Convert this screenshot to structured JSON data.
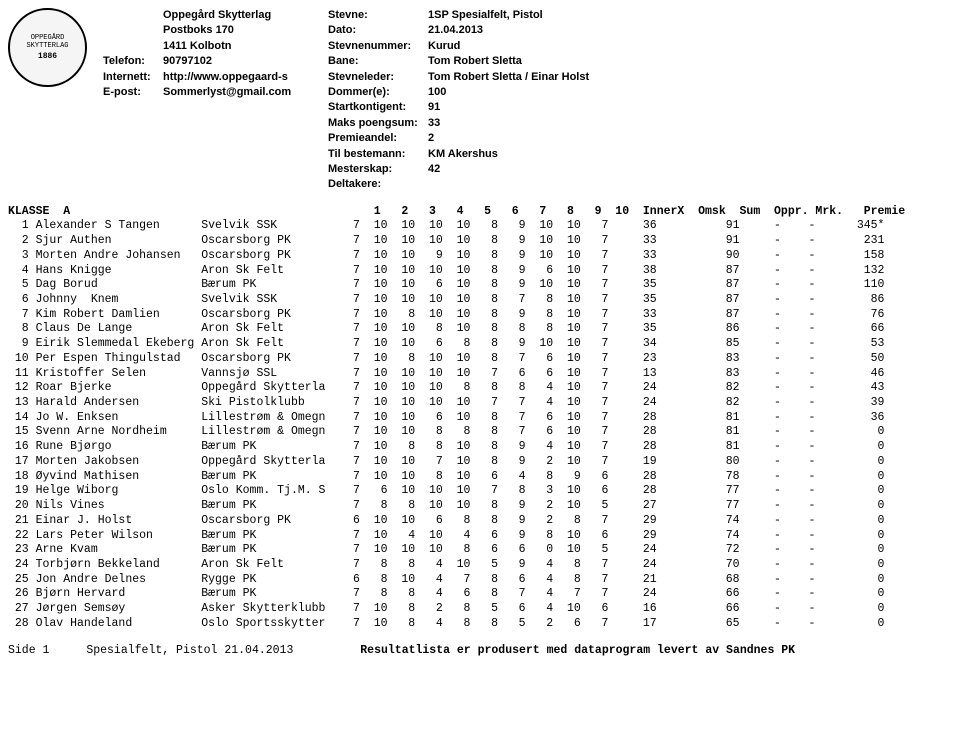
{
  "logo": {
    "top_text": "OPPEGÅRD SKYTTERLAG",
    "year": "1886"
  },
  "org": {
    "name": "Oppegård Skytterlag",
    "address": "Postboks 170",
    "city": "1411  Kolbotn",
    "phone_label": "Telefon:",
    "phone": "90797102",
    "web_label": "Internett:",
    "web": "http://www.oppegaard-s",
    "email_label": "E-post:",
    "email": "Sommerlyst@gmail.com"
  },
  "meta_labels": {
    "stevne": "Stevne:",
    "dato": "Dato:",
    "stevnenummer": "Stevnenummer:",
    "bane": "Bane:",
    "stevneleder": "Stevneleder:",
    "dommer": "Dommer(e):",
    "startkontigent": "Startkontigent:",
    "maks": "Maks poengsum:",
    "premieandel": "Premieandel:",
    "tilbestemann": "Til bestemann:",
    "mesterskap": "Mesterskap:",
    "deltakere": "Deltakere:"
  },
  "meta_values": {
    "stevne": "1SP Spesialfelt, Pistol",
    "dato": "21.04.2013",
    "stevnenummer": "",
    "bane": "Kurud",
    "stevneleder": "Tom Robert Sletta",
    "dommer": "Tom Robert Sletta / Einar Holst",
    "startkontigent": "100",
    "maks": "91",
    "premieandel": "33",
    "tilbestemann": "2",
    "mesterskap": "KM   Akershus",
    "deltakere": "42"
  },
  "table": {
    "klasse": "KLASSE  A",
    "columns": [
      "1",
      "2",
      "3",
      "4",
      "5",
      "6",
      "7",
      "8",
      "9",
      "10",
      "InnerX",
      "Omsk",
      "Sum",
      "Oppr.",
      "Mrk.",
      "Premie"
    ],
    "rows": [
      {
        "n": "1",
        "name": "Alexander S Tangen",
        "club": "Svelvik SSK",
        "s": [
          "7",
          "10",
          "10",
          "10",
          "10",
          "8",
          "9",
          "10",
          "10",
          "7"
        ],
        "ix": "36",
        "sum": "91",
        "oppr": "-",
        "mrk": "-",
        "prem": "345*"
      },
      {
        "n": "2",
        "name": "Sjur Authen",
        "club": "Oscarsborg PK",
        "s": [
          "7",
          "10",
          "10",
          "10",
          "10",
          "8",
          "9",
          "10",
          "10",
          "7"
        ],
        "ix": "33",
        "sum": "91",
        "oppr": "-",
        "mrk": "-",
        "prem": "231"
      },
      {
        "n": "3",
        "name": "Morten Andre Johansen",
        "club": "Oscarsborg PK",
        "s": [
          "7",
          "10",
          "10",
          "9",
          "10",
          "8",
          "9",
          "10",
          "10",
          "7"
        ],
        "ix": "33",
        "sum": "90",
        "oppr": "-",
        "mrk": "-",
        "prem": "158"
      },
      {
        "n": "4",
        "name": "Hans Knigge",
        "club": "Aron Sk Felt",
        "s": [
          "7",
          "10",
          "10",
          "10",
          "10",
          "8",
          "9",
          "6",
          "10",
          "7"
        ],
        "ix": "38",
        "sum": "87",
        "oppr": "-",
        "mrk": "-",
        "prem": "132"
      },
      {
        "n": "5",
        "name": "Dag Borud",
        "club": "Bærum PK",
        "s": [
          "7",
          "10",
          "10",
          "6",
          "10",
          "8",
          "9",
          "10",
          "10",
          "7"
        ],
        "ix": "35",
        "sum": "87",
        "oppr": "-",
        "mrk": "-",
        "prem": "110"
      },
      {
        "n": "6",
        "name": "Johnny  Knem",
        "club": "Svelvik SSK",
        "s": [
          "7",
          "10",
          "10",
          "10",
          "10",
          "8",
          "7",
          "8",
          "10",
          "7"
        ],
        "ix": "35",
        "sum": "87",
        "oppr": "-",
        "mrk": "-",
        "prem": "86"
      },
      {
        "n": "7",
        "name": "Kim Robert Damlien",
        "club": "Oscarsborg PK",
        "s": [
          "7",
          "10",
          "8",
          "10",
          "10",
          "8",
          "9",
          "8",
          "10",
          "7"
        ],
        "ix": "33",
        "sum": "87",
        "oppr": "-",
        "mrk": "-",
        "prem": "76"
      },
      {
        "n": "8",
        "name": "Claus De Lange",
        "club": "Aron Sk Felt",
        "s": [
          "7",
          "10",
          "10",
          "8",
          "10",
          "8",
          "8",
          "8",
          "10",
          "7"
        ],
        "ix": "35",
        "sum": "86",
        "oppr": "-",
        "mrk": "-",
        "prem": "66"
      },
      {
        "n": "9",
        "name": "Eirik Slemmedal Ekeberg",
        "club": "Aron Sk Felt",
        "s": [
          "7",
          "10",
          "10",
          "6",
          "8",
          "8",
          "9",
          "10",
          "10",
          "7"
        ],
        "ix": "34",
        "sum": "85",
        "oppr": "-",
        "mrk": "-",
        "prem": "53"
      },
      {
        "n": "10",
        "name": "Per Espen Thingulstad",
        "club": "Oscarsborg PK",
        "s": [
          "7",
          "10",
          "8",
          "10",
          "10",
          "8",
          "7",
          "6",
          "10",
          "7"
        ],
        "ix": "23",
        "sum": "83",
        "oppr": "-",
        "mrk": "-",
        "prem": "50"
      },
      {
        "n": "11",
        "name": "Kristoffer Selen",
        "club": "Vannsjø SSL",
        "s": [
          "7",
          "10",
          "10",
          "10",
          "10",
          "7",
          "6",
          "6",
          "10",
          "7"
        ],
        "ix": "13",
        "sum": "83",
        "oppr": "-",
        "mrk": "-",
        "prem": "46"
      },
      {
        "n": "12",
        "name": "Roar Bjerke",
        "club": "Oppegård Skytterla",
        "s": [
          "7",
          "10",
          "10",
          "10",
          "8",
          "8",
          "8",
          "4",
          "10",
          "7"
        ],
        "ix": "24",
        "sum": "82",
        "oppr": "-",
        "mrk": "-",
        "prem": "43"
      },
      {
        "n": "13",
        "name": "Harald Andersen",
        "club": "Ski Pistolklubb",
        "s": [
          "7",
          "10",
          "10",
          "10",
          "10",
          "7",
          "7",
          "4",
          "10",
          "7"
        ],
        "ix": "24",
        "sum": "82",
        "oppr": "-",
        "mrk": "-",
        "prem": "39"
      },
      {
        "n": "14",
        "name": "Jo W. Enksen",
        "club": "Lillestrøm & Omegn",
        "s": [
          "7",
          "10",
          "10",
          "6",
          "10",
          "8",
          "7",
          "6",
          "10",
          "7"
        ],
        "ix": "28",
        "sum": "81",
        "oppr": "-",
        "mrk": "-",
        "prem": "36"
      },
      {
        "n": "15",
        "name": "Svenn Arne Nordheim",
        "club": "Lillestrøm & Omegn",
        "s": [
          "7",
          "10",
          "10",
          "8",
          "8",
          "8",
          "7",
          "6",
          "10",
          "7"
        ],
        "ix": "28",
        "sum": "81",
        "oppr": "-",
        "mrk": "-",
        "prem": "0"
      },
      {
        "n": "16",
        "name": "Rune Bjørgo",
        "club": "Bærum PK",
        "s": [
          "7",
          "10",
          "8",
          "8",
          "10",
          "8",
          "9",
          "4",
          "10",
          "7"
        ],
        "ix": "28",
        "sum": "81",
        "oppr": "-",
        "mrk": "-",
        "prem": "0"
      },
      {
        "n": "17",
        "name": "Morten Jakobsen",
        "club": "Oppegård Skytterla",
        "s": [
          "7",
          "10",
          "10",
          "7",
          "10",
          "8",
          "9",
          "2",
          "10",
          "7"
        ],
        "ix": "19",
        "sum": "80",
        "oppr": "-",
        "mrk": "-",
        "prem": "0"
      },
      {
        "n": "18",
        "name": "Øyvind Mathisen",
        "club": "Bærum PK",
        "s": [
          "7",
          "10",
          "10",
          "8",
          "10",
          "6",
          "4",
          "8",
          "9",
          "6"
        ],
        "ix": "28",
        "sum": "78",
        "oppr": "-",
        "mrk": "-",
        "prem": "0"
      },
      {
        "n": "19",
        "name": "Helge Wiborg",
        "club": "Oslo Komm. Tj.M. S",
        "s": [
          "7",
          "6",
          "10",
          "10",
          "10",
          "7",
          "8",
          "3",
          "10",
          "6"
        ],
        "ix": "28",
        "sum": "77",
        "oppr": "-",
        "mrk": "-",
        "prem": "0"
      },
      {
        "n": "20",
        "name": "Nils Vines",
        "club": "Bærum PK",
        "s": [
          "7",
          "8",
          "8",
          "10",
          "10",
          "8",
          "9",
          "2",
          "10",
          "5"
        ],
        "ix": "27",
        "sum": "77",
        "oppr": "-",
        "mrk": "-",
        "prem": "0"
      },
      {
        "n": "21",
        "name": "Einar J. Holst",
        "club": "Oscarsborg PK",
        "s": [
          "6",
          "10",
          "10",
          "6",
          "8",
          "8",
          "9",
          "2",
          "8",
          "7"
        ],
        "ix": "29",
        "sum": "74",
        "oppr": "-",
        "mrk": "-",
        "prem": "0"
      },
      {
        "n": "22",
        "name": "Lars Peter Wilson",
        "club": "Bærum PK",
        "s": [
          "7",
          "10",
          "4",
          "10",
          "4",
          "6",
          "9",
          "8",
          "10",
          "6"
        ],
        "ix": "29",
        "sum": "74",
        "oppr": "-",
        "mrk": "-",
        "prem": "0"
      },
      {
        "n": "23",
        "name": "Arne Kvam",
        "club": "Bærum PK",
        "s": [
          "7",
          "10",
          "10",
          "10",
          "8",
          "6",
          "6",
          "0",
          "10",
          "5"
        ],
        "ix": "24",
        "sum": "72",
        "oppr": "-",
        "mrk": "-",
        "prem": "0"
      },
      {
        "n": "24",
        "name": "Torbjørn Bekkeland",
        "club": "Aron Sk Felt",
        "s": [
          "7",
          "8",
          "8",
          "4",
          "10",
          "5",
          "9",
          "4",
          "8",
          "7"
        ],
        "ix": "24",
        "sum": "70",
        "oppr": "-",
        "mrk": "-",
        "prem": "0"
      },
      {
        "n": "25",
        "name": "Jon Andre Delnes",
        "club": "Rygge PK",
        "s": [
          "6",
          "8",
          "10",
          "4",
          "7",
          "8",
          "6",
          "4",
          "8",
          "7"
        ],
        "ix": "21",
        "sum": "68",
        "oppr": "-",
        "mrk": "-",
        "prem": "0"
      },
      {
        "n": "26",
        "name": "Bjørn Hervard",
        "club": "Bærum PK",
        "s": [
          "7",
          "8",
          "8",
          "4",
          "6",
          "8",
          "7",
          "4",
          "7",
          "7"
        ],
        "ix": "24",
        "sum": "66",
        "oppr": "-",
        "mrk": "-",
        "prem": "0"
      },
      {
        "n": "27",
        "name": "Jørgen Semsøy",
        "club": "Asker Skytterklubb",
        "s": [
          "7",
          "10",
          "8",
          "2",
          "8",
          "5",
          "6",
          "4",
          "10",
          "6"
        ],
        "ix": "16",
        "sum": "66",
        "oppr": "-",
        "mrk": "-",
        "prem": "0"
      },
      {
        "n": "28",
        "name": "Olav Handeland",
        "club": "Oslo Sportsskytter",
        "s": [
          "7",
          "10",
          "8",
          "4",
          "8",
          "8",
          "5",
          "2",
          "6",
          "7"
        ],
        "ix": "17",
        "sum": "65",
        "oppr": "-",
        "mrk": "-",
        "prem": "0"
      }
    ]
  },
  "footer": {
    "page": "Side 1",
    "title": "Spesialfelt, Pistol 21.04.2013",
    "notice": "Resultatlista er produsert med dataprogram levert av Sandnes PK"
  }
}
